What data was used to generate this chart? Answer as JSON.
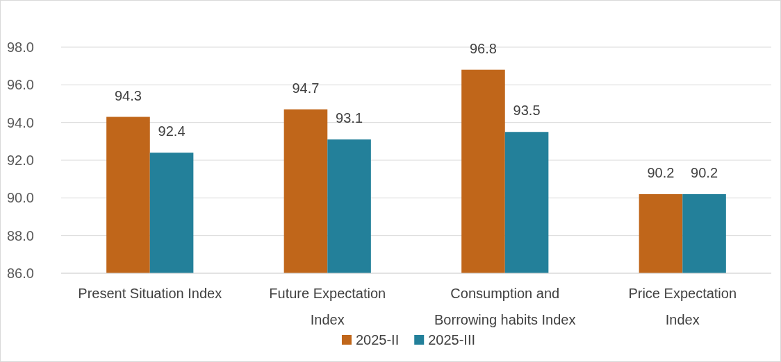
{
  "chart_data": {
    "type": "bar",
    "categories": [
      "Present Situation Index",
      "Future Expectation Index",
      "Consumption and Borrowing habits Index",
      "Price Expectation Index"
    ],
    "series": [
      {
        "name": "2025-II",
        "color": "#c0661a",
        "values": [
          94.3,
          94.7,
          96.8,
          90.2
        ]
      },
      {
        "name": "2025-III",
        "color": "#23809a",
        "values": [
          92.4,
          93.1,
          93.5,
          90.2
        ]
      }
    ],
    "ylim": [
      86,
      98
    ],
    "yticks": [
      {
        "value": 86,
        "label": "86.0"
      },
      {
        "value": 88,
        "label": "88.0"
      },
      {
        "value": 90,
        "label": "90.0"
      },
      {
        "value": 92,
        "label": "92.0"
      },
      {
        "value": 94,
        "label": "94.0"
      },
      {
        "value": 96,
        "label": "96.0"
      },
      {
        "value": 98,
        "label": "98.0"
      }
    ],
    "grid": "y",
    "legend": "bottom",
    "data_labels": true
  }
}
